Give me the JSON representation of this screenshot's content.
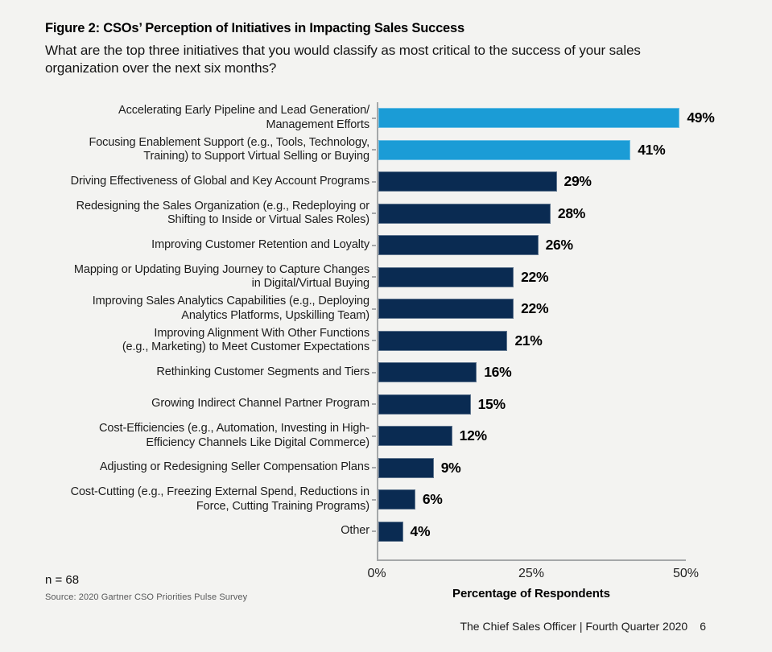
{
  "header": {
    "figure_title": "Figure 2: CSOs’ Perception of Initiatives in Impacting Sales Success",
    "question": "What are the top three initiatives that you would classify as most critical to the success of your sales organization over the next six months?"
  },
  "chart_data": {
    "type": "bar",
    "orientation": "horizontal",
    "categories": [
      [
        "Accelerating Early Pipeline and Lead Generation/",
        "Management Efforts"
      ],
      [
        "Focusing Enablement Support (e.g., Tools, Technology,",
        "Training) to Support Virtual Selling or Buying"
      ],
      [
        "Driving Effectiveness of Global and Key Account Programs"
      ],
      [
        "Redesigning the Sales Organization (e.g., Redeploying or",
        "Shifting to Inside or Virtual Sales Roles)"
      ],
      [
        "Improving Customer Retention and Loyalty"
      ],
      [
        "Mapping or Updating Buying Journey to Capture Changes",
        "in Digital/Virtual Buying"
      ],
      [
        "Improving Sales Analytics Capabilities (e.g., Deploying",
        "Analytics Platforms, Upskilling Team)"
      ],
      [
        "Improving Alignment With Other Functions",
        "(e.g., Marketing) to Meet Customer Expectations"
      ],
      [
        "Rethinking Customer Segments and Tiers"
      ],
      [
        "Growing Indirect Channel Partner Program"
      ],
      [
        "Cost-Efficiencies (e.g., Automation, Investing in High-",
        "Efficiency Channels Like Digital Commerce)"
      ],
      [
        "Adjusting or Redesigning Seller Compensation Plans"
      ],
      [
        "Cost-Cutting (e.g., Freezing External Spend, Reductions in",
        "Force, Cutting Training Programs)"
      ],
      [
        "Other"
      ]
    ],
    "values": [
      49,
      41,
      29,
      28,
      26,
      22,
      22,
      21,
      16,
      15,
      12,
      9,
      6,
      4
    ],
    "value_suffix": "%",
    "highlight_count": 2,
    "colors": {
      "highlight": "#1B9CD6",
      "default": "#0A2B52",
      "axis": "#A5A7A9",
      "background": "#F3F3F1"
    },
    "xlabel": "Percentage of Respondents",
    "xticks": [
      "0%",
      "25%",
      "50%"
    ],
    "xlim": [
      0,
      50
    ],
    "grid": false,
    "legend": "none"
  },
  "notes": {
    "sample_size": "n = 68",
    "source": "Source: 2020 Gartner CSO Priorities Pulse Survey"
  },
  "footer": {
    "publication": "The Chief Sales Officer | Fourth Quarter 2020",
    "page_number": "6"
  }
}
